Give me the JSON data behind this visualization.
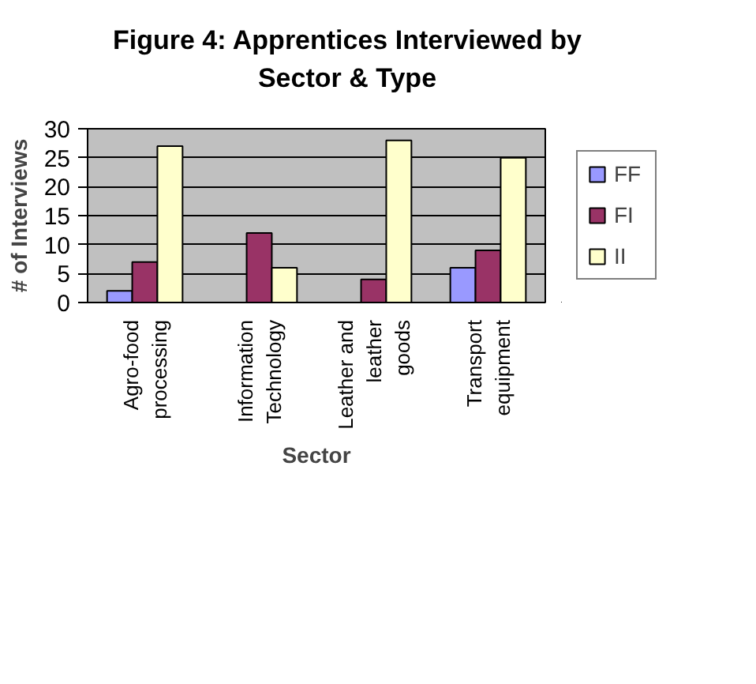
{
  "chart_data": {
    "type": "bar",
    "title": "Figure 4:  Apprentices Interviewed by Sector & Type",
    "xlabel": "Sector",
    "ylabel": "# of Interviews",
    "categories": [
      "Agro-food processing",
      "Information Technology",
      "Leather and leather goods",
      "Transport equipment"
    ],
    "series": [
      {
        "name": "FF",
        "color": "#9999ff",
        "values": [
          2,
          0,
          0,
          6
        ]
      },
      {
        "name": "FI",
        "color": "#993366",
        "values": [
          7,
          12,
          4,
          9
        ]
      },
      {
        "name": "II",
        "color": "#ffffcc",
        "values": [
          27,
          6,
          28,
          25
        ]
      }
    ],
    "ylim": [
      0,
      30
    ],
    "yticks": [
      0,
      5,
      10,
      15,
      20,
      25,
      30
    ],
    "grid": "y",
    "legend": "right"
  }
}
